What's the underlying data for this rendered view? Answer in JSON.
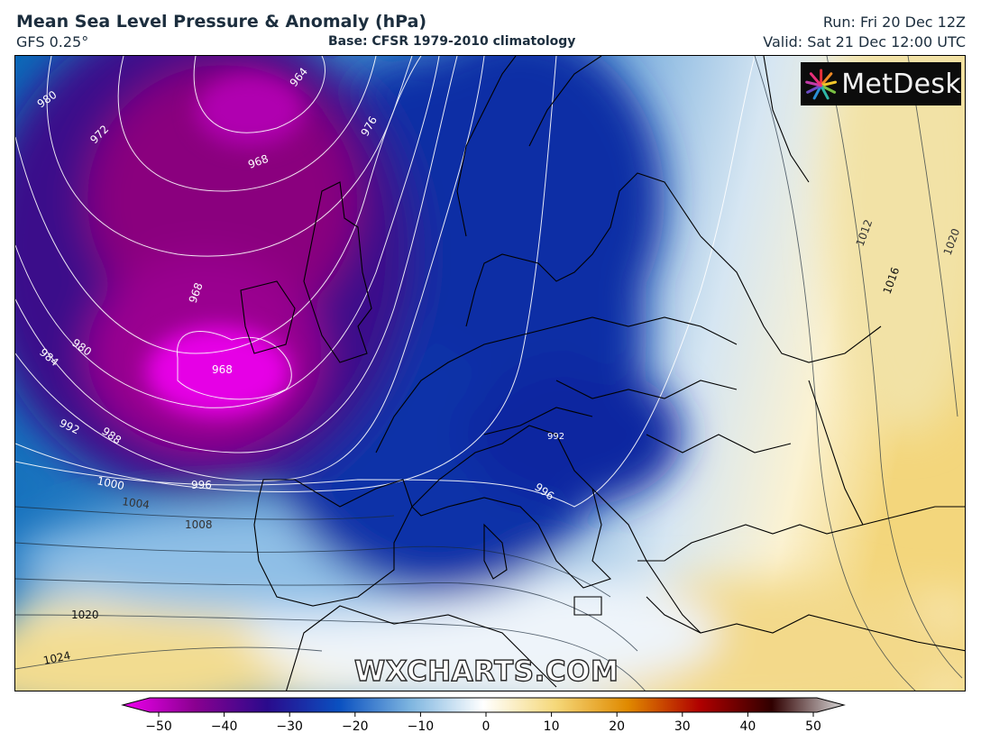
{
  "header": {
    "title": "Mean Sea Level Pressure & Anomaly (hPa)",
    "model": "GFS 0.25°",
    "base": "Base: CFSR 1979-2010 climatology",
    "run": "Run: Fri 20 Dec 12Z",
    "valid": "Valid: Sat 21 Dec 12:00 UTC"
  },
  "logo": {
    "text": "MetDesk",
    "icon": "metdesk-sunburst-icon"
  },
  "watermark": "WXCHARTS.COM",
  "colorbar": {
    "ticks": [
      "−50",
      "−40",
      "−30",
      "−20",
      "−10",
      "0",
      "10",
      "20",
      "30",
      "40",
      "50"
    ],
    "min": -50,
    "max": 50,
    "colors": {
      "neg50": "#f000f0",
      "neg40": "#8a0090",
      "neg30": "#2a0a8c",
      "neg20": "#0a50c0",
      "neg10": "#7fb6e0",
      "zero": "#ffffff",
      "pos10": "#f5d87a",
      "pos20": "#e08a00",
      "pos30": "#b00000",
      "pos40": "#300000",
      "pos50": "#d8d8d8"
    }
  },
  "isobar_labels": [
    "980",
    "972",
    "964",
    "968",
    "976",
    "980",
    "984",
    "968",
    "968",
    "992",
    "988",
    "1000",
    "996",
    "1004",
    "1008",
    "1020",
    "1024",
    "996",
    "1012",
    "1016",
    "1020",
    "992"
  ]
}
